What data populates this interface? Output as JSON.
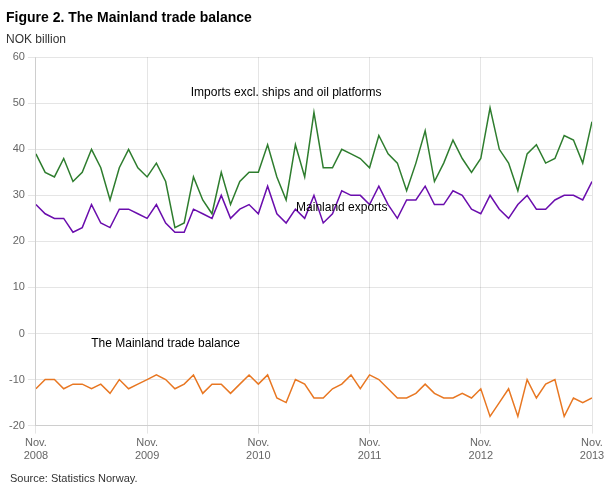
{
  "chart_data": {
    "type": "line",
    "title": "Figure 2. The Mainland trade balance",
    "ylabel": "NOK billion",
    "source": "Source: Statistics Norway.",
    "x": [
      0,
      1,
      2,
      3,
      4,
      5,
      6,
      7,
      8,
      9,
      10,
      11,
      12,
      13,
      14,
      15,
      16,
      17,
      18,
      19,
      20,
      21,
      22,
      23,
      24,
      25,
      26,
      27,
      28,
      29,
      30,
      31,
      32,
      33,
      34,
      35,
      36,
      37,
      38,
      39,
      40,
      41,
      42,
      43,
      44,
      45,
      46,
      47,
      48,
      49,
      50,
      51,
      52,
      53,
      54,
      55,
      56,
      57,
      58,
      59,
      60
    ],
    "xlim": [
      0,
      60
    ],
    "xticks": [
      {
        "value": 0,
        "label": "Nov.\n2008"
      },
      {
        "value": 12,
        "label": "Nov.\n2009"
      },
      {
        "value": 24,
        "label": "Nov.\n2010"
      },
      {
        "value": 36,
        "label": "Nov.\n2011"
      },
      {
        "value": 48,
        "label": "Nov.\n2012"
      },
      {
        "value": 60,
        "label": "Nov.\n2013"
      }
    ],
    "ylim": [
      -20,
      60
    ],
    "yticks": [
      -20,
      -10,
      0,
      10,
      20,
      30,
      40,
      50,
      60
    ],
    "grid": true,
    "series": [
      {
        "name": "Imports excl. ships and oil platforms",
        "color": "#2e7d2e",
        "values": [
          39,
          35,
          34,
          38,
          33,
          35,
          40,
          36,
          29,
          36,
          40,
          36,
          34,
          37,
          33,
          23,
          24,
          34,
          29,
          26,
          35,
          28,
          33,
          35,
          35,
          41,
          34,
          29,
          41,
          34,
          48,
          36,
          36,
          40,
          39,
          38,
          36,
          43,
          39,
          37,
          31,
          37,
          44,
          33,
          37,
          42,
          38,
          35,
          38,
          49,
          40,
          37,
          31,
          39,
          41,
          37,
          38,
          43,
          42,
          37,
          46
        ]
      },
      {
        "name": "Mainland exports",
        "color": "#6a0dad",
        "values": [
          28,
          26,
          25,
          25,
          22,
          23,
          28,
          24,
          23,
          27,
          27,
          26,
          25,
          28,
          24,
          22,
          22,
          27,
          26,
          25,
          30,
          25,
          27,
          28,
          26,
          32,
          26,
          24,
          27,
          25,
          30,
          24,
          26,
          31,
          30,
          30,
          28,
          32,
          28,
          25,
          29,
          29,
          32,
          28,
          28,
          31,
          30,
          27,
          26,
          30,
          27,
          25,
          28,
          30,
          27,
          27,
          29,
          30,
          30,
          29,
          33
        ]
      },
      {
        "name": "The Mainland trade balance",
        "color": "#e87722",
        "values": [
          -12,
          -10,
          -10,
          -12,
          -11,
          -11,
          -12,
          -11,
          -13,
          -10,
          -12,
          -11,
          -10,
          -9,
          -10,
          -12,
          -11,
          -9,
          -13,
          -11,
          -11,
          -13,
          -11,
          -9,
          -11,
          -9,
          -14,
          -15,
          -10,
          -11,
          -14,
          -14,
          -12,
          -11,
          -9,
          -12,
          -9,
          -10,
          -12,
          -14,
          -14,
          -13,
          -11,
          -13,
          -14,
          -14,
          -13,
          -14,
          -12,
          -18,
          -15,
          -12,
          -18,
          -10,
          -14,
          -11,
          -10,
          -18,
          -14,
          -15,
          -14
        ]
      }
    ],
    "annotations": [
      {
        "text": "Imports excl. ships and oil platforms",
        "x": 27,
        "y": 51
      },
      {
        "text": "Mainland exports",
        "x": 33,
        "y": 26
      },
      {
        "text": "The Mainland trade balance",
        "x": 14,
        "y": -3.5
      }
    ]
  }
}
